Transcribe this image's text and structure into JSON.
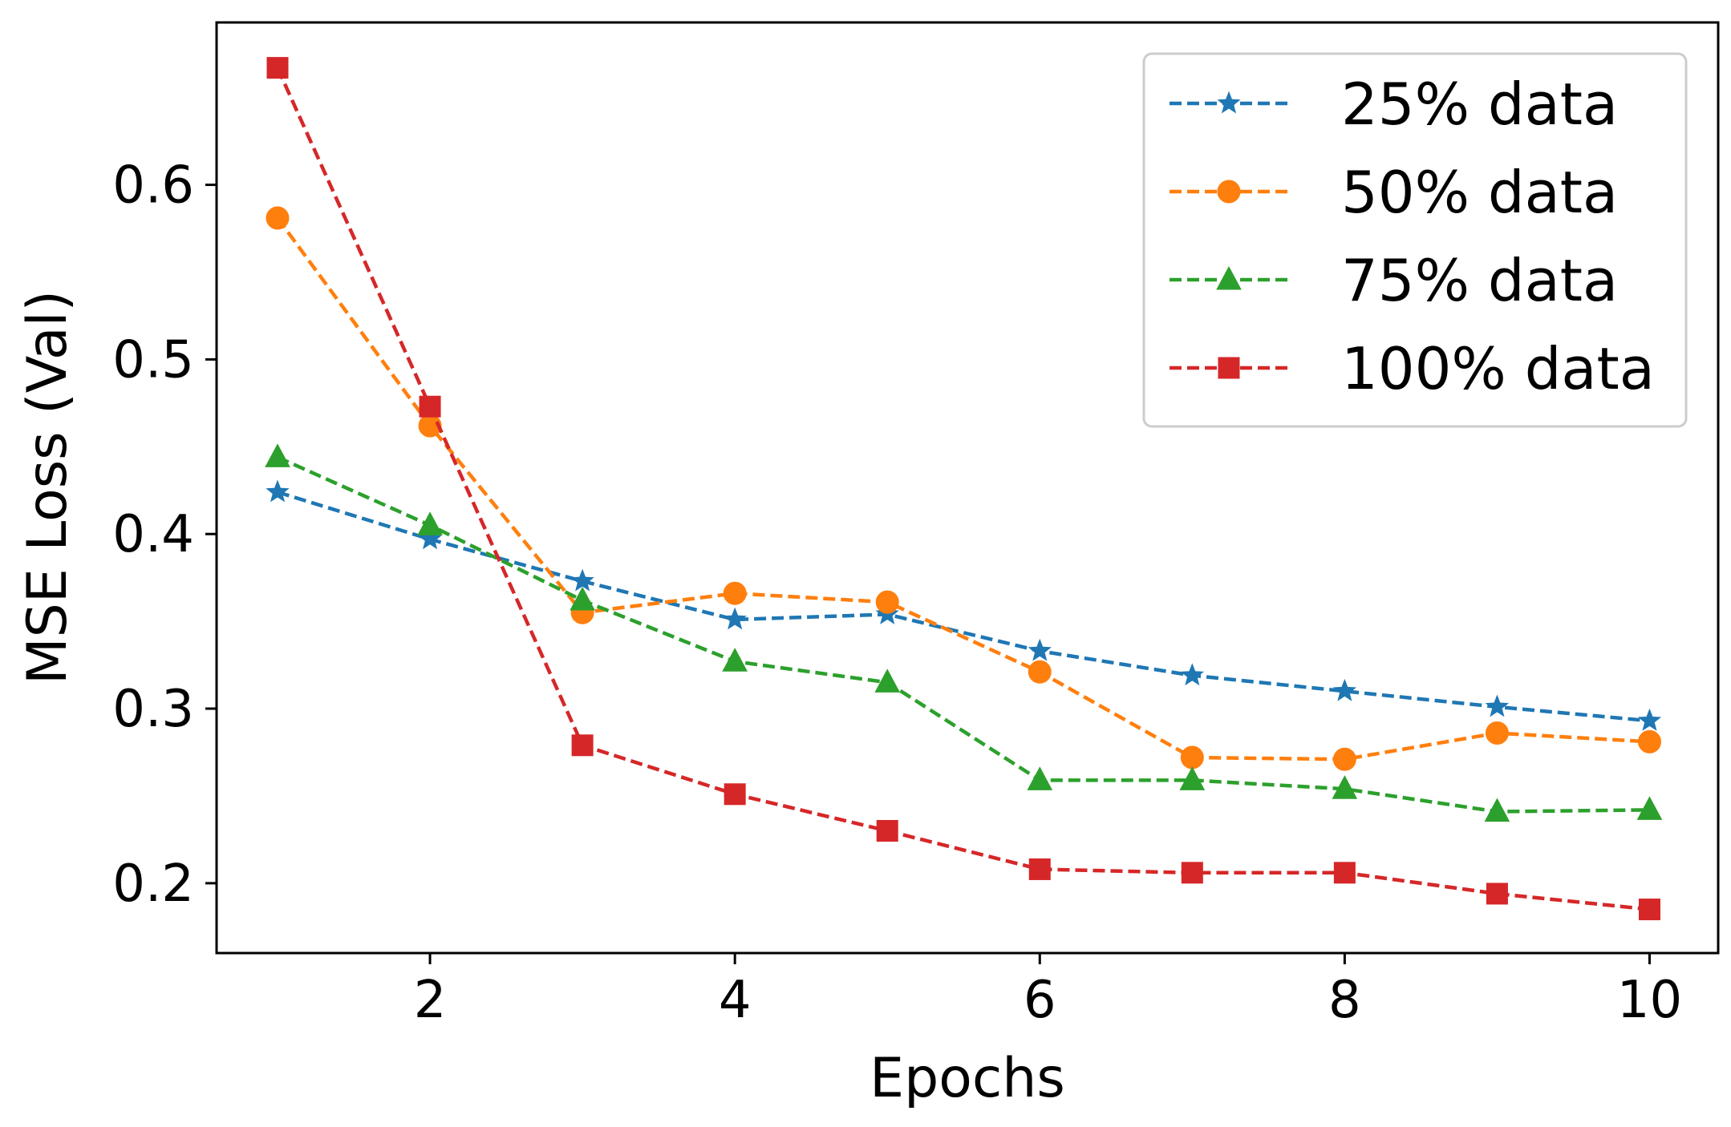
{
  "chart_data": {
    "type": "line",
    "title": "",
    "xlabel": "Epochs",
    "ylabel": "MSE Loss (Val)",
    "xlim": [
      0.6,
      10.45
    ],
    "ylim": [
      0.16,
      0.693
    ],
    "xticks": [
      2,
      4,
      6,
      8,
      10
    ],
    "yticks": [
      0.2,
      0.3,
      0.4,
      0.5,
      0.6
    ],
    "ytick_labels": [
      "0.2",
      "0.3",
      "0.4",
      "0.5",
      "0.6"
    ],
    "xtick_labels": [
      "2",
      "4",
      "6",
      "8",
      "10"
    ],
    "grid": false,
    "legend_position": "top-right",
    "x": [
      1,
      2,
      3,
      4,
      5,
      6,
      7,
      8,
      9,
      10
    ],
    "series": [
      {
        "name": "25% data",
        "color": "#1f77b4",
        "marker": "star",
        "values": [
          0.424,
          0.397,
          0.373,
          0.351,
          0.354,
          0.333,
          0.319,
          0.31,
          0.301,
          0.293
        ]
      },
      {
        "name": "50% data",
        "color": "#ff7f0e",
        "marker": "circle",
        "values": [
          0.581,
          0.462,
          0.355,
          0.366,
          0.361,
          0.321,
          0.272,
          0.271,
          0.286,
          0.281
        ]
      },
      {
        "name": "75% data",
        "color": "#2ca02c",
        "marker": "triangle",
        "values": [
          0.444,
          0.405,
          0.362,
          0.327,
          0.315,
          0.259,
          0.259,
          0.254,
          0.241,
          0.242
        ]
      },
      {
        "name": "100% data",
        "color": "#d62728",
        "marker": "square",
        "values": [
          0.667,
          0.473,
          0.279,
          0.251,
          0.23,
          0.208,
          0.206,
          0.206,
          0.194,
          0.185
        ]
      }
    ]
  }
}
